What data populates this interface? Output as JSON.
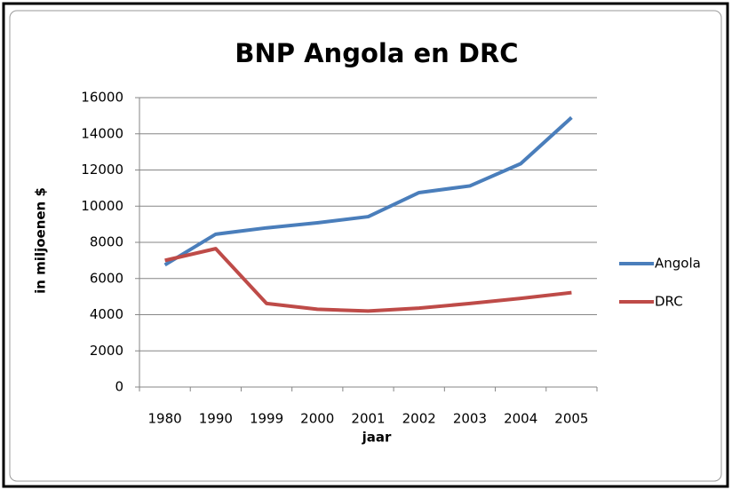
{
  "chart_data": {
    "type": "line",
    "title": "BNP Angola en DRC",
    "x_label": "jaar",
    "y_label": "in miljoenen $",
    "categories": [
      "1980",
      "1990",
      "1999",
      "2000",
      "2001",
      "2002",
      "2003",
      "2004",
      "2005"
    ],
    "series": [
      {
        "name": "Angola",
        "color": "#4a7ebb",
        "values": [
          6750,
          8450,
          8800,
          9080,
          9420,
          10750,
          11120,
          12350,
          14900
        ]
      },
      {
        "name": "DRC",
        "color": "#be4b48",
        "values": [
          7000,
          7650,
          4620,
          4300,
          4200,
          4360,
          4620,
          4900,
          5220
        ]
      }
    ],
    "ylim": [
      0,
      16000
    ],
    "yticks": [
      0,
      2000,
      4000,
      6000,
      8000,
      10000,
      12000,
      14000,
      16000
    ],
    "grid": true,
    "legend": "right"
  }
}
